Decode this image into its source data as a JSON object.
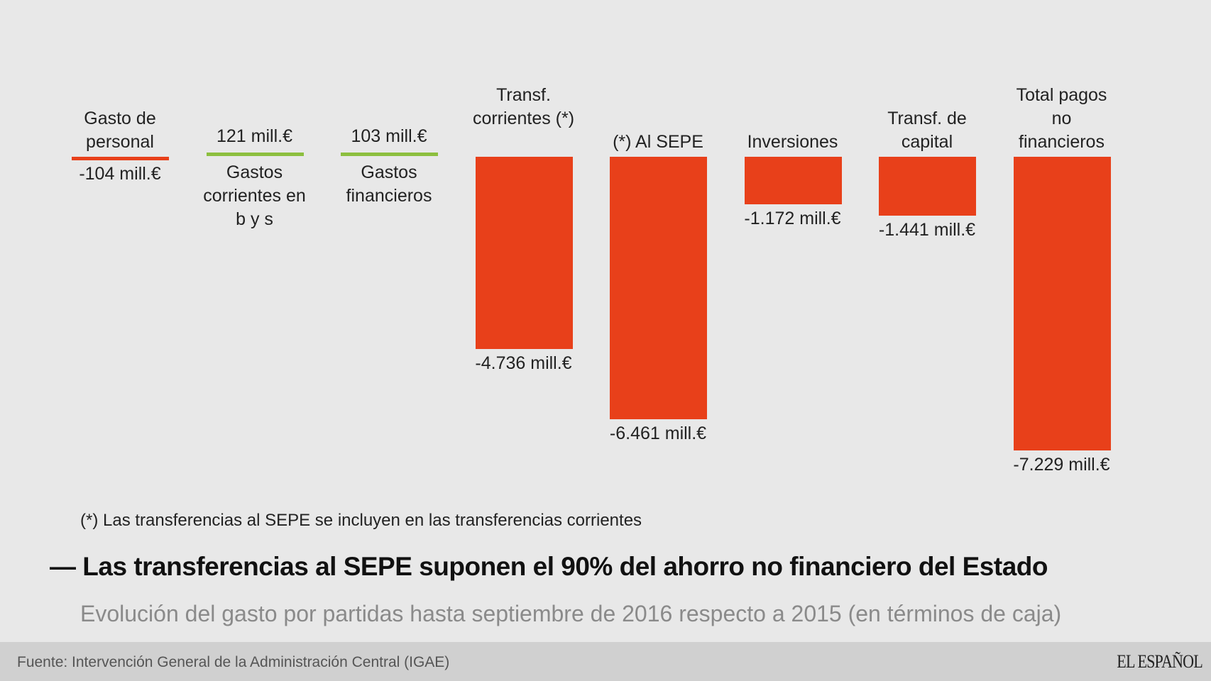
{
  "chart_data": {
    "type": "bar",
    "categories": [
      "Gasto de personal",
      "Gastos corrientes en b y s",
      "Gastos financieros",
      "Transf. corrientes (*)",
      "(*) Al SEPE",
      "Inversiones",
      "Transf. de capital",
      "Total pagos no financieros"
    ],
    "values": [
      -104,
      121,
      103,
      -4736,
      -6461,
      -1172,
      -1441,
      -7229
    ],
    "value_labels": [
      "-104 mill.€",
      "121 mill.€",
      "103 mill.€",
      "-4.736 mill.€",
      "-6.461 mill.€",
      "-1.172 mill.€",
      "-1.441 mill.€",
      "-7.229 mill.€"
    ],
    "unit": "mill.€",
    "colors": {
      "negative": "#e8401a",
      "positive": "#8cbf3f"
    },
    "title": "Las transferencias al SEPE suponen el 90% del ahorro no financiero del Estado",
    "subtitle": "Evolución del gasto por partidas hasta septiembre de 2016 respecto a 2015 (en términos de caja)",
    "footnote": "(*) Las transferencias al SEPE se incluyen en las transferencias corrientes",
    "xlabel": "",
    "ylabel": "",
    "grid": false
  },
  "footer": {
    "source": "Fuente: Intervención General de la Administración Central (IGAE)",
    "logo": "EL ESPAÑOL"
  }
}
